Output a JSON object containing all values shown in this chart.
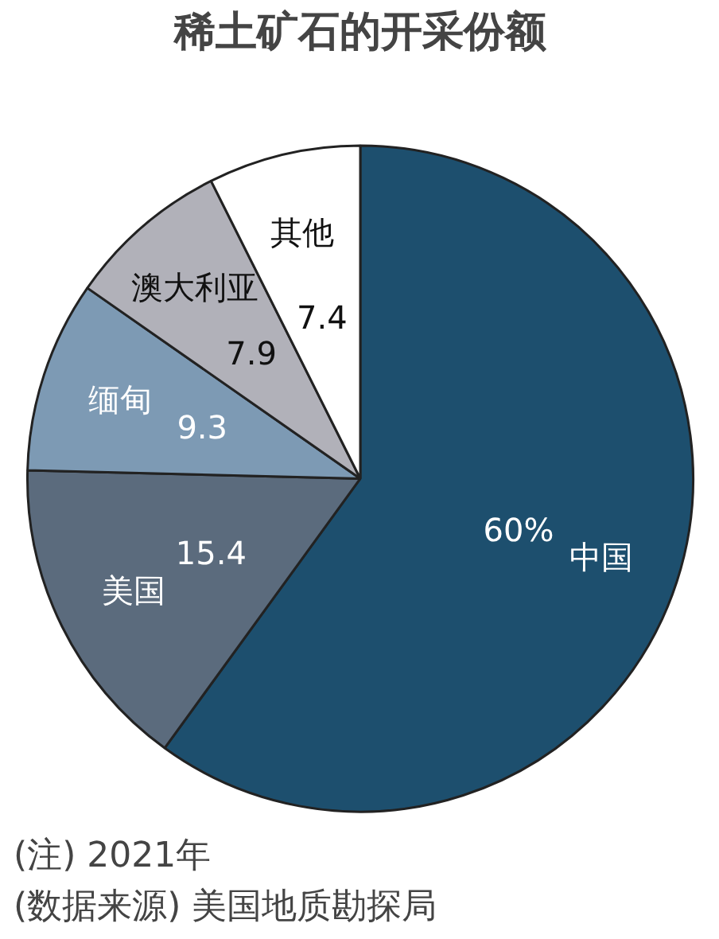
{
  "chart_data": {
    "type": "pie",
    "title": "稀土矿石的开采份额",
    "categories": [
      "中国",
      "美国",
      "缅甸",
      "澳大利亚",
      "其他"
    ],
    "values": [
      60,
      15.4,
      9.3,
      7.9,
      7.4
    ],
    "value_labels": [
      "60%",
      "15.4",
      "9.3",
      "7.9",
      "7.4"
    ],
    "colors": [
      "#1d4f6e",
      "#5b6b7d",
      "#7d9ab4",
      "#b1b1b9",
      "#ffffff"
    ],
    "annotations": [
      "(注) 2021年",
      "(数据来源) 美国地质勘探局"
    ]
  }
}
